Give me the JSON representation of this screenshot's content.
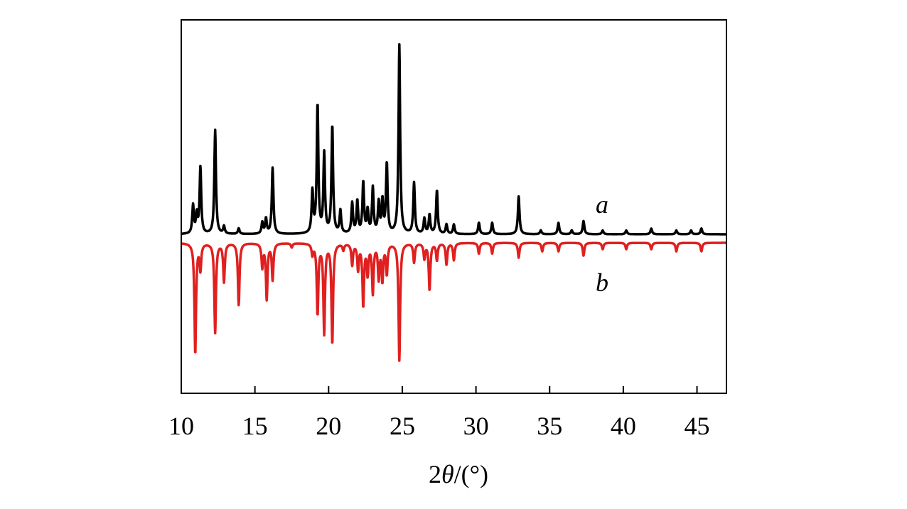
{
  "chart_data": {
    "type": "line",
    "xlabel_prefix": "2",
    "xlabel_theta": "θ",
    "xlabel_suffix": "/(°)",
    "ylabel": "",
    "xlim": [
      10,
      47
    ],
    "xticks": [
      10,
      15,
      20,
      25,
      30,
      35,
      40,
      45
    ],
    "grid": false,
    "series": [
      {
        "name": "a",
        "color": "#000000",
        "direction": "up",
        "baseline": 0.1,
        "peaks": [
          {
            "x": 10.8,
            "y": 0.15
          },
          {
            "x": 11.05,
            "y": 0.1
          },
          {
            "x": 11.3,
            "y": 0.35
          },
          {
            "x": 12.3,
            "y": 0.55
          },
          {
            "x": 12.9,
            "y": 0.04
          },
          {
            "x": 13.9,
            "y": 0.03
          },
          {
            "x": 15.5,
            "y": 0.06
          },
          {
            "x": 15.75,
            "y": 0.08
          },
          {
            "x": 16.2,
            "y": 0.35
          },
          {
            "x": 18.9,
            "y": 0.22
          },
          {
            "x": 19.25,
            "y": 0.68
          },
          {
            "x": 19.7,
            "y": 0.42
          },
          {
            "x": 20.25,
            "y": 0.57
          },
          {
            "x": 20.8,
            "y": 0.12
          },
          {
            "x": 21.6,
            "y": 0.16
          },
          {
            "x": 21.95,
            "y": 0.17
          },
          {
            "x": 22.35,
            "y": 0.27
          },
          {
            "x": 22.65,
            "y": 0.12
          },
          {
            "x": 23.0,
            "y": 0.24
          },
          {
            "x": 23.4,
            "y": 0.16
          },
          {
            "x": 23.65,
            "y": 0.17
          },
          {
            "x": 23.95,
            "y": 0.37
          },
          {
            "x": 24.8,
            "y": 1.0
          },
          {
            "x": 25.8,
            "y": 0.27
          },
          {
            "x": 26.5,
            "y": 0.08
          },
          {
            "x": 26.85,
            "y": 0.1
          },
          {
            "x": 27.35,
            "y": 0.23
          },
          {
            "x": 28.0,
            "y": 0.05
          },
          {
            "x": 28.5,
            "y": 0.05
          },
          {
            "x": 30.2,
            "y": 0.06
          },
          {
            "x": 31.1,
            "y": 0.06
          },
          {
            "x": 32.9,
            "y": 0.2
          },
          {
            "x": 34.4,
            "y": 0.02
          },
          {
            "x": 35.6,
            "y": 0.06
          },
          {
            "x": 36.5,
            "y": 0.02
          },
          {
            "x": 37.3,
            "y": 0.07
          },
          {
            "x": 38.6,
            "y": 0.02
          },
          {
            "x": 40.2,
            "y": 0.02
          },
          {
            "x": 41.9,
            "y": 0.03
          },
          {
            "x": 43.6,
            "y": 0.02
          },
          {
            "x": 44.6,
            "y": 0.02
          },
          {
            "x": 45.3,
            "y": 0.03
          }
        ]
      },
      {
        "name": "b",
        "color": "#e02020",
        "direction": "down",
        "baseline": -0.01,
        "peaks": [
          {
            "x": 10.95,
            "y": 0.52
          },
          {
            "x": 11.3,
            "y": 0.12
          },
          {
            "x": 12.3,
            "y": 0.42
          },
          {
            "x": 12.9,
            "y": 0.18
          },
          {
            "x": 13.9,
            "y": 0.29
          },
          {
            "x": 15.5,
            "y": 0.11
          },
          {
            "x": 15.8,
            "y": 0.26
          },
          {
            "x": 16.2,
            "y": 0.17
          },
          {
            "x": 17.5,
            "y": 0.02
          },
          {
            "x": 18.9,
            "y": 0.05
          },
          {
            "x": 19.25,
            "y": 0.33
          },
          {
            "x": 19.7,
            "y": 0.42
          },
          {
            "x": 20.25,
            "y": 0.47
          },
          {
            "x": 21.0,
            "y": 0.03
          },
          {
            "x": 21.6,
            "y": 0.1
          },
          {
            "x": 22.0,
            "y": 0.12
          },
          {
            "x": 22.35,
            "y": 0.29
          },
          {
            "x": 22.65,
            "y": 0.14
          },
          {
            "x": 23.0,
            "y": 0.23
          },
          {
            "x": 23.4,
            "y": 0.16
          },
          {
            "x": 23.65,
            "y": 0.17
          },
          {
            "x": 23.95,
            "y": 0.14
          },
          {
            "x": 24.8,
            "y": 0.55
          },
          {
            "x": 25.8,
            "y": 0.09
          },
          {
            "x": 26.5,
            "y": 0.07
          },
          {
            "x": 26.85,
            "y": 0.22
          },
          {
            "x": 27.35,
            "y": 0.08
          },
          {
            "x": 28.0,
            "y": 0.1
          },
          {
            "x": 28.5,
            "y": 0.08
          },
          {
            "x": 30.2,
            "y": 0.05
          },
          {
            "x": 31.1,
            "y": 0.05
          },
          {
            "x": 32.9,
            "y": 0.07
          },
          {
            "x": 34.5,
            "y": 0.04
          },
          {
            "x": 35.6,
            "y": 0.04
          },
          {
            "x": 37.3,
            "y": 0.06
          },
          {
            "x": 38.6,
            "y": 0.03
          },
          {
            "x": 40.2,
            "y": 0.03
          },
          {
            "x": 41.9,
            "y": 0.03
          },
          {
            "x": 43.6,
            "y": 0.04
          },
          {
            "x": 45.3,
            "y": 0.04
          }
        ]
      }
    ]
  }
}
